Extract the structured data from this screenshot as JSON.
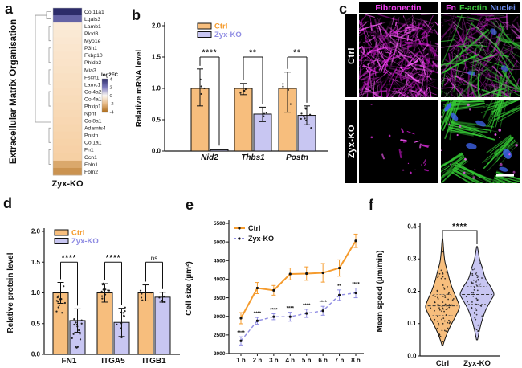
{
  "panel_letters": {
    "a": "a",
    "b": "b",
    "c": "c",
    "d": "d",
    "e": "e",
    "f": "f"
  },
  "colors": {
    "ctrl_fill": "#F7BE7D",
    "ko_fill": "#C8C6F2",
    "ctrl_accent": "#F59B2D",
    "ko_accent": "#8F8CE3",
    "axis": "#1a1a1a",
    "heat_pos_mid": "#7D7BC0",
    "heat_pos_end": "#2D2C6A",
    "heat_neg_mid": "#F6CD9E",
    "heat_neg_end": "#A96613",
    "magenta": "#E02BE0",
    "green": "#35C935",
    "nuclei_blue": "#3E5FD7",
    "nuclei_label_blue": "#6E8FF2"
  },
  "legend": {
    "ctrl": "Ctrl",
    "ko": "Zyx-KO"
  },
  "panel_c": {
    "header_left": "Fibronectin",
    "header_right": [
      {
        "text": "Fn",
        "color": "#F542F5"
      },
      {
        "text": "F-actin",
        "color": "#3ECC3E"
      },
      {
        "text": "Nuclei",
        "color": "#6E8FF2"
      }
    ],
    "row_labels": [
      "Ctrl",
      "Zyx-KO"
    ]
  },
  "chart_data": [
    {
      "id": "heatmap_a",
      "type": "heatmap",
      "ylabel": "Extracellular Matrix Organisation",
      "xlabel": "Zyx-KO",
      "legend_title": "log2FC",
      "legend_ticks": [
        "4",
        "2",
        "0",
        "-2",
        "-4"
      ],
      "rows": [
        "Col11a1",
        "Lgals3",
        "Lamb1",
        "Plod3",
        "Myo1e",
        "P3h1",
        "Fkbp10",
        "Phldb2",
        "Mia3",
        "Fscn1",
        "Lamc1",
        "Col4a2",
        "Col4a1",
        "Pbxip1",
        "Npnt",
        "Col8a1",
        "Adamts4",
        "Postn",
        "Col1a1",
        "Fn1",
        "Ccn1",
        "Fbln1",
        "Fbln2"
      ],
      "values": [
        4.2,
        2.6,
        -0.5,
        -0.55,
        -0.6,
        -0.65,
        -0.7,
        -0.75,
        -0.8,
        -0.85,
        -0.9,
        -0.95,
        -1.0,
        -1.05,
        -1.1,
        -1.15,
        -1.2,
        -1.25,
        -1.3,
        -1.35,
        -1.4,
        -2.4,
        -2.9
      ],
      "vlim": [
        -4,
        4
      ]
    },
    {
      "id": "bar_b",
      "type": "bar",
      "ylabel": "Relative mRNA level",
      "categories": [
        "Nid2",
        "Thbs1",
        "Postn"
      ],
      "italic_categories": true,
      "ylim": [
        0,
        2
      ],
      "yticks": [
        "0.0",
        "0.5",
        "1.0",
        "1.5",
        "2.0"
      ],
      "series": [
        {
          "name": "Ctrl",
          "values": [
            1.0,
            1.0,
            1.0
          ],
          "err_lo": [
            0.28,
            0.1,
            0.38
          ],
          "err_hi": [
            0.31,
            0.08,
            0.26
          ],
          "dot_counts": [
            4,
            3,
            4
          ],
          "dot_ranges": [
            [
              0.74,
              1.3
            ],
            [
              0.9,
              1.06
            ],
            [
              0.66,
              1.24
            ]
          ]
        },
        {
          "name": "Zyx-KO",
          "values": [
            0.02,
            0.59,
            0.57
          ],
          "err_lo": [
            0.015,
            0.12,
            0.15
          ],
          "err_hi": [
            0.015,
            0.11,
            0.15
          ],
          "dot_counts": [
            0,
            3,
            9
          ],
          "dot_ranges": [
            [
              0.0,
              0.04
            ],
            [
              0.48,
              0.69
            ],
            [
              0.35,
              0.75
            ]
          ]
        }
      ],
      "significance": [
        "****",
        "**",
        "**"
      ],
      "sig_level": 1.5
    },
    {
      "id": "bar_d",
      "type": "bar",
      "ylabel": "Relative protein level",
      "categories": [
        "FN1",
        "ITGA5",
        "ITGB1"
      ],
      "italic_categories": false,
      "ylim": [
        0,
        2
      ],
      "yticks": [
        "0.0",
        "0.5",
        "1.0",
        "1.5",
        "2.0"
      ],
      "series": [
        {
          "name": "Ctrl",
          "values": [
            1.0,
            1.0,
            1.0
          ],
          "err_lo": [
            0.17,
            0.15,
            0.13
          ],
          "err_hi": [
            0.17,
            0.15,
            0.13
          ],
          "dot_counts": [
            13,
            11,
            5
          ],
          "dot_ranges": [
            [
              0.66,
              1.28
            ],
            [
              0.8,
              1.26
            ],
            [
              0.8,
              1.16
            ]
          ]
        },
        {
          "name": "Zyx-KO",
          "values": [
            0.55,
            0.52,
            0.93
          ],
          "err_lo": [
            0.19,
            0.23,
            0.08
          ],
          "err_hi": [
            0.19,
            0.23,
            0.08
          ],
          "dot_counts": [
            15,
            11,
            5
          ],
          "dot_ranges": [
            [
              0.06,
              0.84
            ],
            [
              0.1,
              0.95
            ],
            [
              0.8,
              1.05
            ]
          ]
        }
      ],
      "significance": [
        "****",
        "****",
        "ns"
      ],
      "sig_level": 1.5
    },
    {
      "id": "line_e",
      "type": "line",
      "ylabel": "Cell size (µm²)",
      "x_categories": [
        "1 h",
        "2 h",
        "3 h",
        "4 h",
        "5 h",
        "6 h",
        "7 h",
        "8 h"
      ],
      "ylim": [
        2000,
        5500
      ],
      "yticks": [
        "2000",
        "2500",
        "3000",
        "3500",
        "4000",
        "4500",
        "5000",
        "5500"
      ],
      "series": [
        {
          "name": "Ctrl",
          "values": [
            2950,
            3760,
            3700,
            4140,
            4150,
            4170,
            4300,
            5030
          ],
          "err": [
            150,
            150,
            130,
            160,
            180,
            250,
            220,
            180
          ]
        },
        {
          "name": "Zyx-KO",
          "values": [
            2340,
            2880,
            2990,
            2990,
            3080,
            3150,
            3570,
            3630
          ],
          "err": [
            110,
            90,
            80,
            120,
            110,
            120,
            140,
            130
          ]
        }
      ],
      "significance": [
        "****",
        "****",
        "****",
        "****",
        "****",
        "****",
        "**",
        "****"
      ]
    },
    {
      "id": "violin_f",
      "type": "violin",
      "ylabel": "Mean speed (µm/min)",
      "categories": [
        "Ctrl",
        "Zyx-KO"
      ],
      "ylim": [
        0,
        0.4
      ],
      "yticks": [
        "0.0",
        "0.1",
        "0.2",
        "0.3",
        "0.4"
      ],
      "significance": "****",
      "violins": [
        {
          "name": "Ctrl",
          "median": 0.155,
          "q1": 0.125,
          "q3": 0.19,
          "min": 0.033,
          "max": 0.36,
          "n_dots": 75,
          "profile": [
            [
              0.033,
              0.03
            ],
            [
              0.06,
              0.2
            ],
            [
              0.09,
              0.45
            ],
            [
              0.12,
              0.75
            ],
            [
              0.15,
              1.0
            ],
            [
              0.17,
              0.9
            ],
            [
              0.2,
              0.65
            ],
            [
              0.23,
              0.45
            ],
            [
              0.26,
              0.3
            ],
            [
              0.29,
              0.15
            ],
            [
              0.32,
              0.08
            ],
            [
              0.36,
              0.02
            ]
          ]
        },
        {
          "name": "Zyx-KO",
          "median": 0.19,
          "q1": 0.16,
          "q3": 0.215,
          "min": 0.05,
          "max": 0.335,
          "n_dots": 55,
          "profile": [
            [
              0.05,
              0.03
            ],
            [
              0.08,
              0.15
            ],
            [
              0.11,
              0.3
            ],
            [
              0.14,
              0.5
            ],
            [
              0.17,
              0.8
            ],
            [
              0.19,
              1.0
            ],
            [
              0.21,
              0.85
            ],
            [
              0.24,
              0.5
            ],
            [
              0.27,
              0.33
            ],
            [
              0.3,
              0.15
            ],
            [
              0.335,
              0.03
            ]
          ]
        }
      ]
    }
  ]
}
